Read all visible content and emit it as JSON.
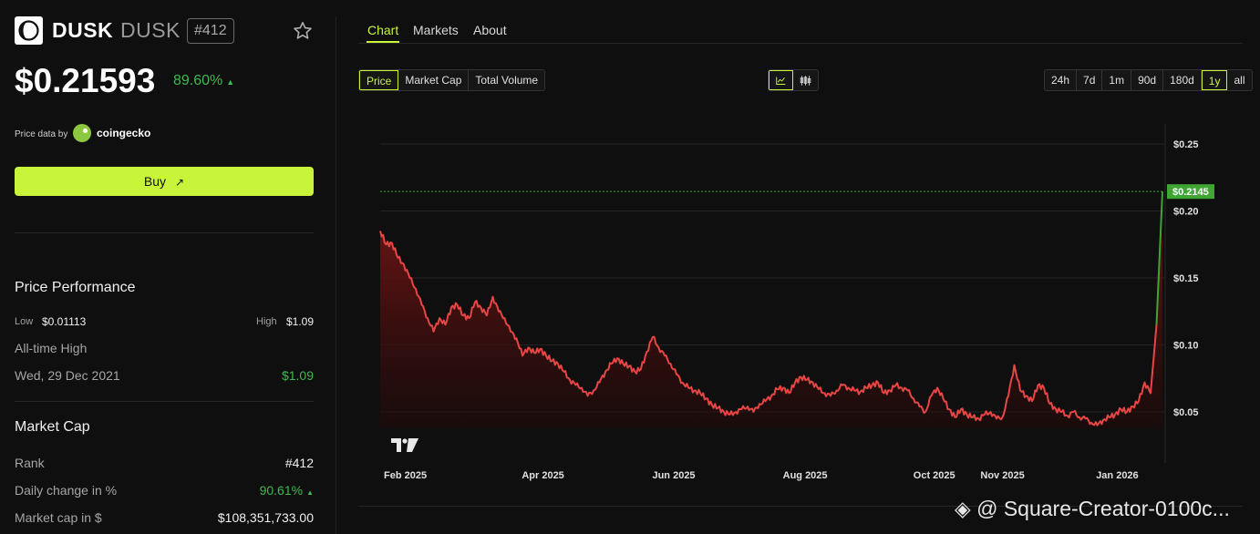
{
  "coin": {
    "symbol": "DUSK",
    "name": "DUSK",
    "rank_badge": "#412",
    "price": "$0.21593",
    "change_pct": "89.60%",
    "change_direction": "up"
  },
  "provider": {
    "label": "Price data by",
    "name": "coingecko"
  },
  "buy": {
    "label": "Buy",
    "icon": "arrow-up-right-icon"
  },
  "performance": {
    "title": "Price Performance",
    "low_label": "Low",
    "low_value": "$0.01113",
    "high_label": "High",
    "high_value": "$1.09",
    "ath_label": "All-time High",
    "ath_date": "Wed, 29 Dec 2021",
    "ath_value": "$1.09"
  },
  "market_cap": {
    "title": "Market Cap",
    "rows": [
      {
        "label": "Rank",
        "value": "#412"
      },
      {
        "label": "Daily change in %",
        "value": "90.61%"
      },
      {
        "label": "Market cap in $",
        "value": "$108,351,733.00"
      }
    ]
  },
  "tabs": [
    "Chart",
    "Markets",
    "About"
  ],
  "active_tab": "Chart",
  "metric_buttons": [
    "Price",
    "Market Cap",
    "Total Volume"
  ],
  "active_metric": "Price",
  "chart_style_buttons": [
    "line-chart-icon",
    "candlestick-icon"
  ],
  "range_buttons": [
    "24h",
    "7d",
    "1m",
    "90d",
    "180d",
    "1y",
    "all"
  ],
  "active_range": "1y",
  "colors": {
    "accent": "#c8f53a",
    "up": "#3fb950",
    "line": "#e84545",
    "fill_top": "#6b1414",
    "current_price_tag": "#3fa634"
  },
  "watermark": "@ Square-Creator-0100c...",
  "chart_data": {
    "type": "area",
    "x_labels": [
      "Feb 2025",
      "Apr 2025",
      "Jun 2025",
      "Aug 2025",
      "Oct 2025",
      "Nov 2025",
      "Jan 2026"
    ],
    "y_ticks": [
      "$0.25",
      "$0.20",
      "$0.15",
      "$0.10",
      "$0.05"
    ],
    "y_tick_values": [
      0.25,
      0.2,
      0.15,
      0.1,
      0.05
    ],
    "ylim": [
      0.011,
      0.265
    ],
    "current_price_label": "$0.2145",
    "current_price": 0.2145,
    "grid": true,
    "series": [
      {
        "values": [
          0.185,
          0.175,
          0.176,
          0.165,
          0.16,
          0.15,
          0.142,
          0.13,
          0.12,
          0.11,
          0.12,
          0.115,
          0.128,
          0.13,
          0.122,
          0.12,
          0.132,
          0.128,
          0.122,
          0.136,
          0.125,
          0.12,
          0.11,
          0.105,
          0.092,
          0.098,
          0.094,
          0.097,
          0.092,
          0.088,
          0.086,
          0.08,
          0.074,
          0.07,
          0.068,
          0.062,
          0.066,
          0.072,
          0.08,
          0.086,
          0.09,
          0.086,
          0.084,
          0.08,
          0.082,
          0.095,
          0.106,
          0.098,
          0.092,
          0.086,
          0.078,
          0.072,
          0.068,
          0.066,
          0.064,
          0.06,
          0.055,
          0.053,
          0.05,
          0.048,
          0.05,
          0.052,
          0.054,
          0.05,
          0.056,
          0.058,
          0.062,
          0.067,
          0.068,
          0.064,
          0.072,
          0.076,
          0.074,
          0.072,
          0.067,
          0.064,
          0.062,
          0.066,
          0.07,
          0.068,
          0.066,
          0.065,
          0.068,
          0.07,
          0.072,
          0.064,
          0.066,
          0.07,
          0.068,
          0.066,
          0.06,
          0.054,
          0.05,
          0.062,
          0.068,
          0.06,
          0.052,
          0.046,
          0.052,
          0.048,
          0.046,
          0.045,
          0.048,
          0.05,
          0.045,
          0.046,
          0.062,
          0.085,
          0.066,
          0.062,
          0.058,
          0.07,
          0.068,
          0.056,
          0.052,
          0.05,
          0.047,
          0.05,
          0.046,
          0.045,
          0.042,
          0.04,
          0.044,
          0.046,
          0.048,
          0.052,
          0.05,
          0.054,
          0.058,
          0.072,
          0.064,
          0.115,
          0.2145
        ]
      }
    ]
  }
}
